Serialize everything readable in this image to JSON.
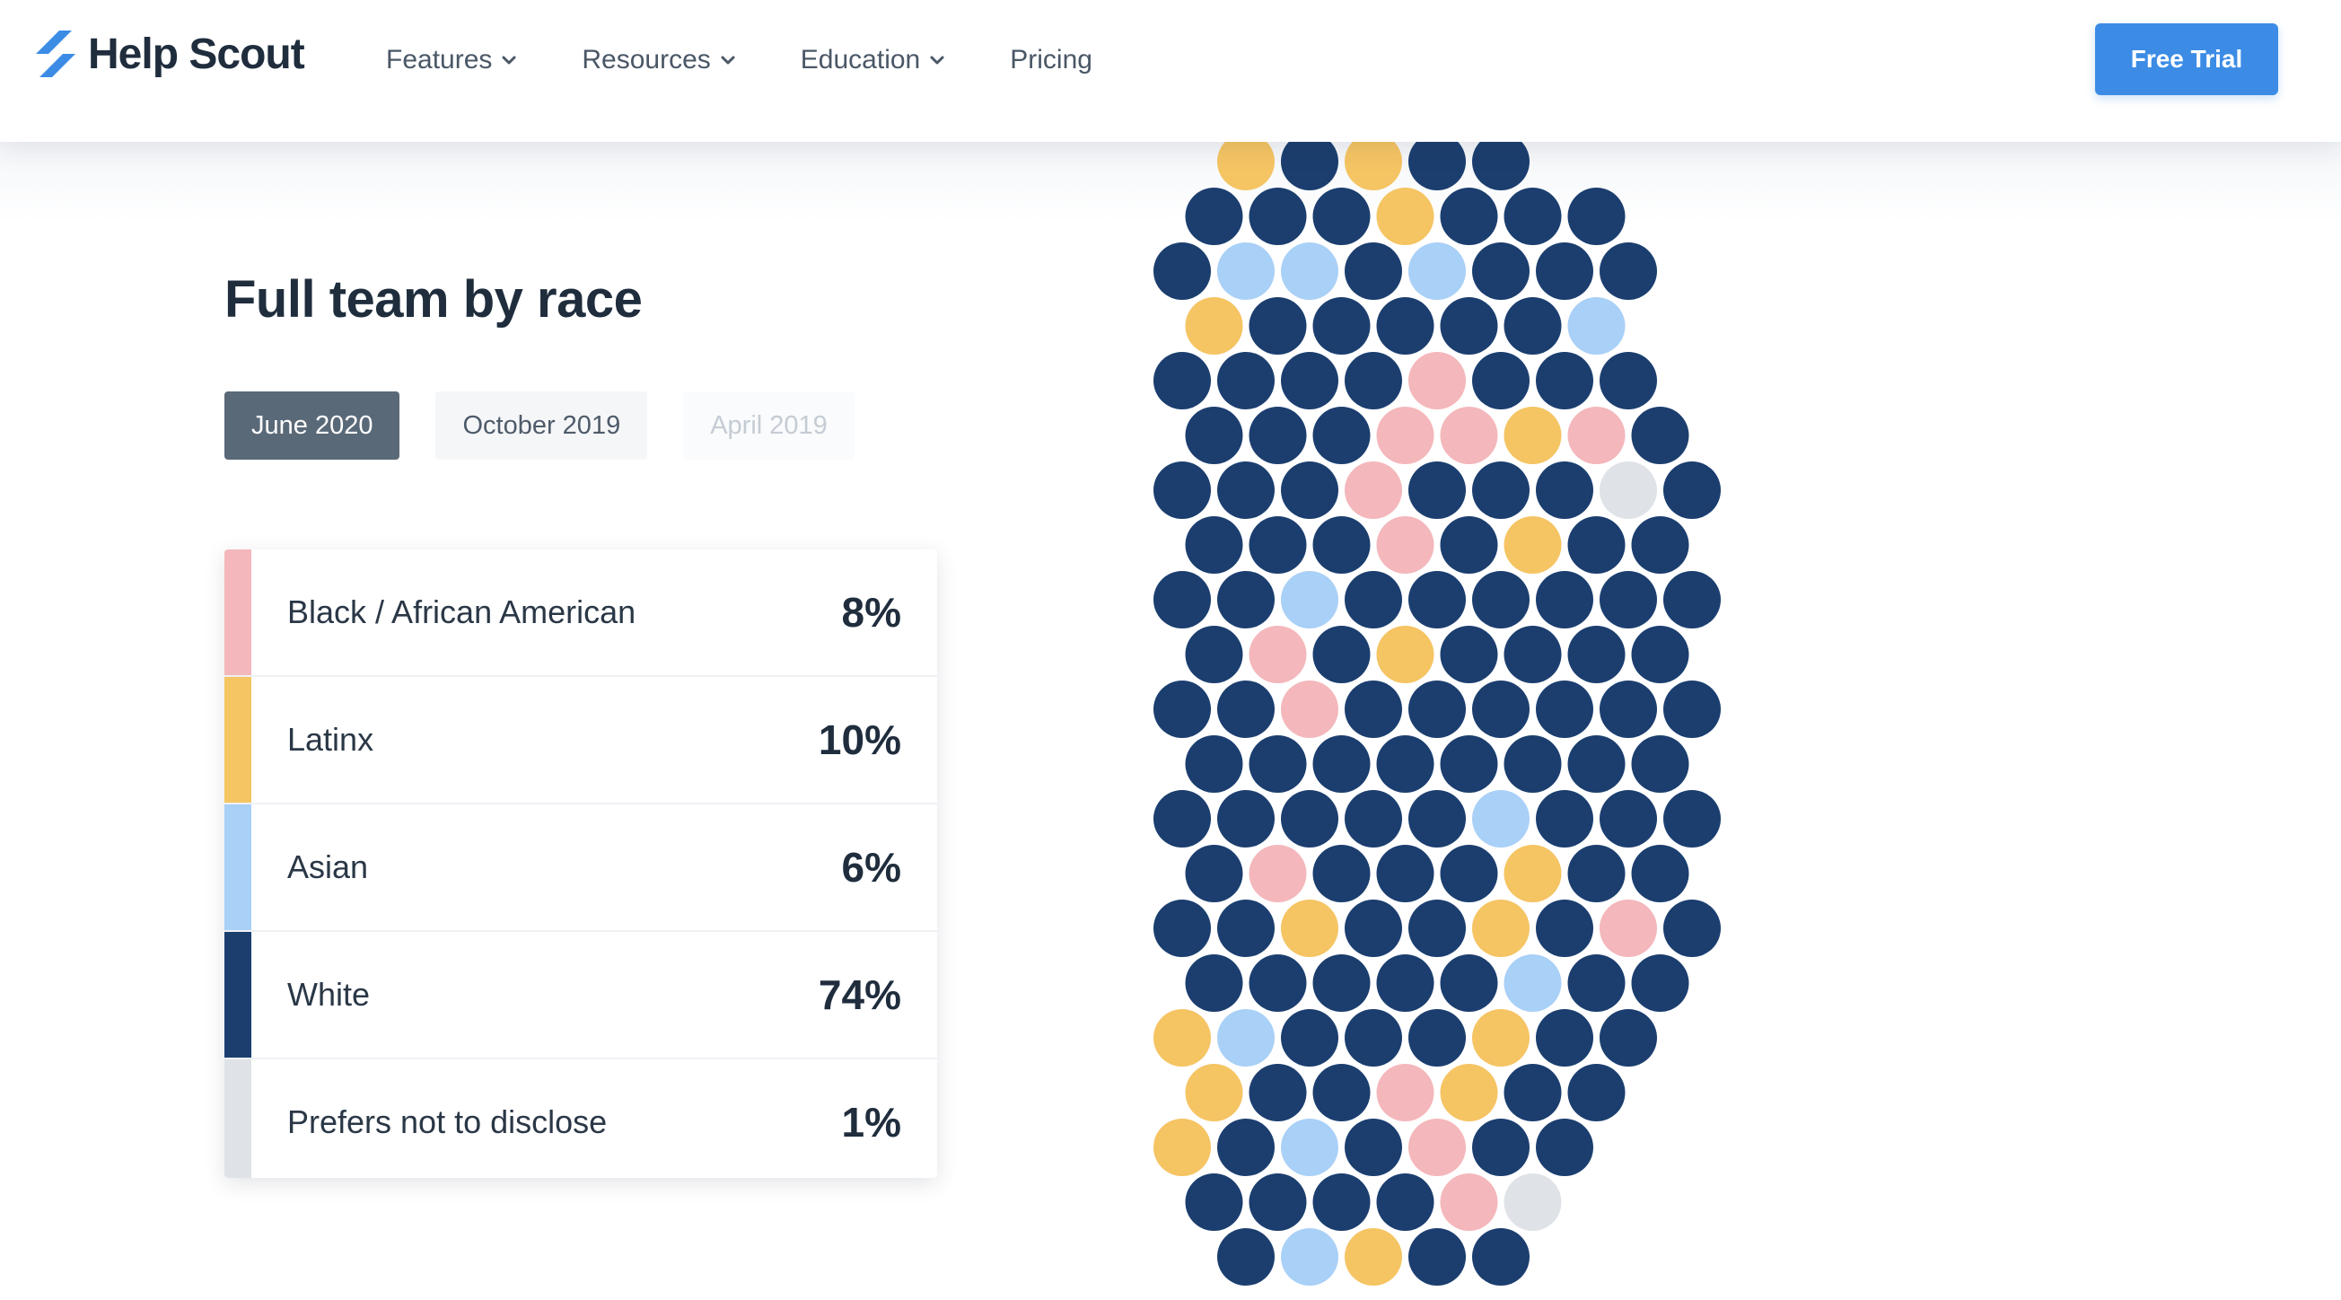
{
  "header": {
    "brand": "Help Scout",
    "nav": [
      {
        "label": "Features",
        "has_dropdown": true
      },
      {
        "label": "Resources",
        "has_dropdown": true
      },
      {
        "label": "Education",
        "has_dropdown": true
      },
      {
        "label": "Pricing",
        "has_dropdown": false
      }
    ],
    "cta_label": "Free Trial"
  },
  "section": {
    "title": "Full team by race",
    "tabs": [
      {
        "label": "June 2020",
        "state": "active"
      },
      {
        "label": "October 2019",
        "state": "default"
      },
      {
        "label": "April 2019",
        "state": "faded"
      }
    ],
    "legend": [
      {
        "label": "Black / African American",
        "percent": "8%",
        "color": "#f4b7bb"
      },
      {
        "label": "Latinx",
        "percent": "10%",
        "color": "#f5c463"
      },
      {
        "label": "Asian",
        "percent": "6%",
        "color": "#a9d0f7"
      },
      {
        "label": "White",
        "percent": "74%",
        "color": "#1b3e6f"
      },
      {
        "label": "Prefers not to disclose",
        "percent": "1%",
        "color": "#dfe3e8"
      }
    ]
  },
  "colors": {
    "accent": "#3c8ce6",
    "dot_white": "#1b3e6f",
    "dot_black": "#f4b7bb",
    "dot_latinx": "#f5c463",
    "dot_asian": "#a9d0f7",
    "dot_undisclosed": "#dfe3e8"
  },
  "chart_data": {
    "type": "dot-grid",
    "series": [
      {
        "name": "Black / African American",
        "percent": 8
      },
      {
        "name": "Latinx",
        "percent": 10
      },
      {
        "name": "Asian",
        "percent": 6
      },
      {
        "name": "White",
        "percent": 74
      },
      {
        "name": "Prefers not to disclose",
        "percent": 1
      }
    ]
  }
}
